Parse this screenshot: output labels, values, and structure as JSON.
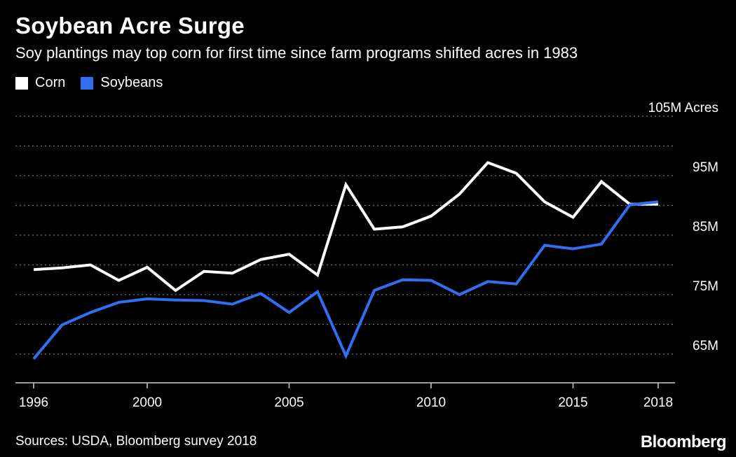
{
  "chart_data": {
    "type": "line",
    "title": "Soybean Acre Surge",
    "subtitle": "Soy plantings may top corn for first time since farm programs shifted acres in 1983",
    "x": [
      1996,
      1997,
      1998,
      1999,
      2000,
      2001,
      2002,
      2003,
      2004,
      2005,
      2006,
      2007,
      2008,
      2009,
      2010,
      2011,
      2012,
      2013,
      2014,
      2015,
      2016,
      2017,
      2018
    ],
    "series": [
      {
        "name": "Corn",
        "color": "#ffffff",
        "values": [
          79.2,
          79.5,
          80.0,
          77.4,
          79.6,
          75.7,
          78.9,
          78.6,
          80.9,
          81.8,
          78.3,
          93.5,
          86.0,
          86.4,
          88.2,
          91.9,
          97.2,
          95.4,
          90.6,
          88.0,
          94.0,
          90.2,
          90.2
        ]
      },
      {
        "name": "Soybeans",
        "color": "#2f6ff0",
        "values": [
          64.2,
          69.9,
          72.0,
          73.7,
          74.3,
          74.1,
          74.0,
          73.4,
          75.2,
          72.0,
          75.5,
          64.7,
          75.7,
          77.5,
          77.4,
          75.0,
          77.2,
          76.8,
          83.3,
          82.7,
          83.5,
          90.1,
          90.6
        ]
      }
    ],
    "xticks": [
      1996,
      2000,
      2005,
      2010,
      2015,
      2018
    ],
    "yticks": [
      {
        "value": 65,
        "label": "65M"
      },
      {
        "value": 75,
        "label": "75M"
      },
      {
        "value": 85,
        "label": "85M"
      },
      {
        "value": 95,
        "label": "95M"
      },
      {
        "value": 105,
        "label": "105M Acres"
      }
    ],
    "gridlines": [
      65,
      70,
      75,
      80,
      85,
      90,
      95,
      100,
      105
    ],
    "ylim": [
      60,
      105
    ],
    "xlabel": "",
    "ylabel": "",
    "legend_position": "top-left",
    "grid": true
  },
  "legend": {
    "corn_label": "Corn",
    "soybeans_label": "Soybeans",
    "corn_color": "#ffffff",
    "soybeans_color": "#2f6ff0"
  },
  "footer": {
    "source": "Sources: USDA, Bloomberg survey 2018",
    "logo": "Bloomberg"
  }
}
